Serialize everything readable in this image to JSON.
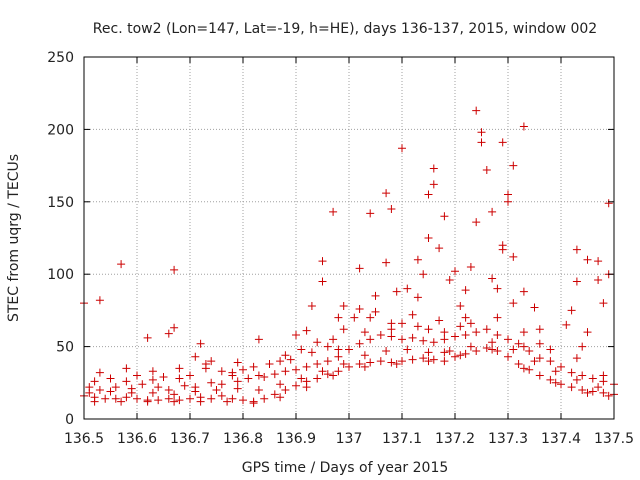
{
  "chart_data": {
    "type": "scatter",
    "title": "Rec. tow2 (Lon=147, Lat=-19, h=HE), days 136-137, 2015, window 002",
    "xlabel": "GPS time / Days of year 2015",
    "ylabel": "STEC from uqrg / TECUs",
    "xlim": [
      136.5,
      137.5
    ],
    "ylim": [
      0,
      250
    ],
    "xticks": [
      "136.5",
      "136.6",
      "136.7",
      "136.8",
      "136.9",
      "137",
      "137.1",
      "137.2",
      "137.3",
      "137.4",
      "137.5"
    ],
    "yticks": [
      "0",
      "50",
      "100",
      "150",
      "200",
      "250"
    ],
    "grid": true,
    "marker": "plus",
    "color": "#cc0000",
    "series": [
      {
        "points": [
          [
            136.5,
            80
          ],
          [
            136.53,
            82
          ],
          [
            136.57,
            107
          ],
          [
            136.67,
            103
          ],
          [
            136.66,
            59
          ],
          [
            136.62,
            56
          ],
          [
            136.67,
            63
          ],
          [
            136.72,
            52
          ],
          [
            136.74,
            40
          ],
          [
            136.71,
            43
          ],
          [
            136.83,
            55
          ],
          [
            136.79,
            39
          ],
          [
            136.95,
            109
          ],
          [
            136.97,
            143
          ],
          [
            136.95,
            95
          ],
          [
            136.93,
            78
          ],
          [
            136.92,
            61
          ],
          [
            136.9,
            58
          ],
          [
            136.98,
            70
          ],
          [
            136.99,
            78
          ],
          [
            137.02,
            104
          ],
          [
            137.04,
            142
          ],
          [
            137.07,
            156
          ],
          [
            137.08,
            145
          ],
          [
            137.07,
            108
          ],
          [
            137.05,
            85
          ],
          [
            137.1,
            187
          ],
          [
            137.09,
            88
          ],
          [
            137.11,
            90
          ],
          [
            137.13,
            110
          ],
          [
            137.13,
            84
          ],
          [
            137.14,
            100
          ],
          [
            137.15,
            125
          ],
          [
            137.15,
            155
          ],
          [
            137.16,
            162
          ],
          [
            137.16,
            173
          ],
          [
            137.17,
            118
          ],
          [
            137.18,
            140
          ],
          [
            137.19,
            96
          ],
          [
            137.2,
            102
          ],
          [
            137.21,
            78
          ],
          [
            137.22,
            89
          ],
          [
            137.23,
            105
          ],
          [
            137.24,
            136
          ],
          [
            137.24,
            213
          ],
          [
            137.25,
            198
          ],
          [
            137.25,
            191
          ],
          [
            137.26,
            172
          ],
          [
            137.27,
            143
          ],
          [
            137.27,
            97
          ],
          [
            137.28,
            90
          ],
          [
            137.29,
            191
          ],
          [
            137.29,
            120
          ],
          [
            137.29,
            117
          ],
          [
            137.3,
            155
          ],
          [
            137.3,
            150
          ],
          [
            137.31,
            175
          ],
          [
            137.31,
            112
          ],
          [
            137.31,
            80
          ],
          [
            137.33,
            202
          ],
          [
            137.33,
            88
          ],
          [
            137.35,
            77
          ],
          [
            137.36,
            62
          ],
          [
            137.41,
            65
          ],
          [
            137.42,
            75
          ],
          [
            137.43,
            117
          ],
          [
            137.43,
            95
          ],
          [
            137.45,
            110
          ],
          [
            137.47,
            109
          ],
          [
            137.47,
            96
          ],
          [
            137.49,
            149
          ],
          [
            137.49,
            100
          ],
          [
            137.48,
            80
          ],
          [
            137.45,
            60
          ],
          [
            137.44,
            50
          ],
          [
            137.36,
            52
          ],
          [
            137.33,
            50
          ],
          [
            137.22,
            70
          ],
          [
            137.21,
            64
          ],
          [
            137.18,
            60
          ],
          [
            137.17,
            68
          ],
          [
            137.15,
            62
          ],
          [
            137.12,
            72
          ],
          [
            137.1,
            66
          ],
          [
            137.08,
            62
          ],
          [
            137.05,
            74
          ],
          [
            137.04,
            70
          ],
          [
            137.02,
            76
          ],
          [
            137.01,
            70
          ],
          [
            136.99,
            62
          ],
          [
            136.97,
            55
          ],
          [
            136.96,
            50
          ],
          [
            136.94,
            53
          ],
          [
            136.91,
            48
          ],
          [
            136.89,
            41
          ],
          [
            136.87,
            40
          ],
          [
            136.85,
            38
          ],
          [
            136.82,
            36
          ],
          [
            136.8,
            34
          ],
          [
            136.78,
            32
          ],
          [
            136.76,
            33
          ],
          [
            136.73,
            35
          ],
          [
            136.7,
            30
          ],
          [
            136.68,
            28
          ],
          [
            136.65,
            29
          ],
          [
            136.63,
            27
          ],
          [
            136.6,
            30
          ],
          [
            136.58,
            26
          ],
          [
            136.55,
            28
          ],
          [
            136.52,
            26
          ],
          [
            136.51,
            22
          ],
          [
            136.53,
            20
          ],
          [
            136.56,
            22
          ],
          [
            136.59,
            21
          ],
          [
            136.61,
            24
          ],
          [
            136.64,
            22
          ],
          [
            136.66,
            20
          ],
          [
            136.69,
            23
          ],
          [
            136.71,
            22
          ],
          [
            136.74,
            25
          ],
          [
            136.76,
            24
          ],
          [
            136.79,
            26
          ],
          [
            136.81,
            28
          ],
          [
            136.84,
            29
          ],
          [
            136.86,
            31
          ],
          [
            136.88,
            33
          ],
          [
            136.9,
            34
          ],
          [
            136.92,
            36
          ],
          [
            136.94,
            38
          ],
          [
            136.96,
            40
          ],
          [
            136.98,
            43
          ],
          [
            137.0,
            48
          ],
          [
            137.02,
            52
          ],
          [
            137.04,
            55
          ],
          [
            137.06,
            58
          ],
          [
            137.08,
            57
          ],
          [
            137.1,
            55
          ],
          [
            137.12,
            56
          ],
          [
            137.14,
            54
          ],
          [
            137.16,
            53
          ],
          [
            137.18,
            55
          ],
          [
            137.2,
            57
          ],
          [
            137.22,
            58
          ],
          [
            137.24,
            60
          ],
          [
            137.26,
            62
          ],
          [
            137.28,
            58
          ],
          [
            137.3,
            55
          ],
          [
            137.32,
            52
          ],
          [
            137.34,
            47
          ],
          [
            137.36,
            42
          ],
          [
            137.38,
            40
          ],
          [
            137.4,
            36
          ],
          [
            137.42,
            32
          ],
          [
            137.44,
            30
          ],
          [
            137.46,
            28
          ],
          [
            137.48,
            26
          ],
          [
            137.5,
            24
          ],
          [
            136.5,
            16
          ],
          [
            136.52,
            15
          ],
          [
            136.54,
            14
          ],
          [
            136.56,
            14
          ],
          [
            136.58,
            15
          ],
          [
            136.6,
            14
          ],
          [
            136.62,
            13
          ],
          [
            136.64,
            13
          ],
          [
            136.66,
            14
          ],
          [
            136.68,
            13
          ],
          [
            136.7,
            14
          ],
          [
            136.72,
            15
          ],
          [
            136.74,
            14
          ],
          [
            136.76,
            16
          ],
          [
            136.78,
            14
          ],
          [
            136.8,
            13
          ],
          [
            136.82,
            12
          ],
          [
            136.84,
            14
          ],
          [
            136.86,
            17
          ],
          [
            136.88,
            20
          ],
          [
            136.9,
            23
          ],
          [
            136.92,
            26
          ],
          [
            136.94,
            28
          ],
          [
            136.96,
            31
          ],
          [
            136.98,
            33
          ],
          [
            137.0,
            36
          ],
          [
            137.02,
            38
          ],
          [
            137.04,
            39
          ],
          [
            137.06,
            40
          ],
          [
            137.08,
            39
          ],
          [
            137.1,
            40
          ],
          [
            137.12,
            41
          ],
          [
            137.14,
            42
          ],
          [
            137.16,
            41
          ],
          [
            137.18,
            40
          ],
          [
            137.2,
            43
          ],
          [
            137.22,
            45
          ],
          [
            137.24,
            47
          ],
          [
            137.26,
            49
          ],
          [
            137.28,
            47
          ],
          [
            137.3,
            43
          ],
          [
            137.32,
            38
          ],
          [
            137.34,
            34
          ],
          [
            137.36,
            30
          ],
          [
            137.38,
            27
          ],
          [
            137.4,
            24
          ],
          [
            137.42,
            22
          ],
          [
            137.44,
            20
          ],
          [
            137.46,
            19
          ],
          [
            137.48,
            18
          ],
          [
            137.5,
            17
          ],
          [
            136.51,
            18
          ],
          [
            136.55,
            19
          ],
          [
            136.59,
            18
          ],
          [
            136.63,
            18
          ],
          [
            136.67,
            17
          ],
          [
            136.71,
            19
          ],
          [
            136.75,
            20
          ],
          [
            136.79,
            21
          ],
          [
            136.83,
            20
          ],
          [
            136.87,
            24
          ],
          [
            136.91,
            28
          ],
          [
            136.95,
            33
          ],
          [
            136.99,
            38
          ],
          [
            137.03,
            44
          ],
          [
            137.07,
            47
          ],
          [
            137.11,
            48
          ],
          [
            137.15,
            46
          ],
          [
            137.19,
            47
          ],
          [
            137.23,
            50
          ],
          [
            137.27,
            53
          ],
          [
            137.31,
            48
          ],
          [
            137.35,
            40
          ],
          [
            137.39,
            33
          ],
          [
            137.43,
            27
          ],
          [
            137.47,
            22
          ],
          [
            136.52,
            12
          ],
          [
            136.57,
            12
          ],
          [
            136.62,
            12
          ],
          [
            136.67,
            12
          ],
          [
            136.72,
            12
          ],
          [
            136.77,
            12
          ],
          [
            136.82,
            11
          ],
          [
            136.87,
            15
          ],
          [
            136.92,
            22
          ],
          [
            136.97,
            30
          ],
          [
            137.03,
            36
          ],
          [
            137.09,
            38
          ],
          [
            137.15,
            40
          ],
          [
            137.21,
            44
          ],
          [
            137.27,
            48
          ],
          [
            137.33,
            35
          ],
          [
            137.39,
            25
          ],
          [
            137.45,
            18
          ],
          [
            137.49,
            16
          ],
          [
            136.53,
            32
          ],
          [
            136.58,
            35
          ],
          [
            136.63,
            33
          ],
          [
            136.68,
            35
          ],
          [
            136.73,
            38
          ],
          [
            136.78,
            30
          ],
          [
            136.83,
            30
          ],
          [
            136.88,
            44
          ],
          [
            136.93,
            46
          ],
          [
            136.98,
            48
          ],
          [
            137.03,
            60
          ],
          [
            137.08,
            66
          ],
          [
            137.13,
            64
          ],
          [
            137.18,
            46
          ],
          [
            137.23,
            66
          ],
          [
            137.28,
            70
          ],
          [
            137.33,
            60
          ],
          [
            137.38,
            48
          ],
          [
            137.43,
            42
          ],
          [
            137.48,
            30
          ]
        ]
      }
    ]
  }
}
